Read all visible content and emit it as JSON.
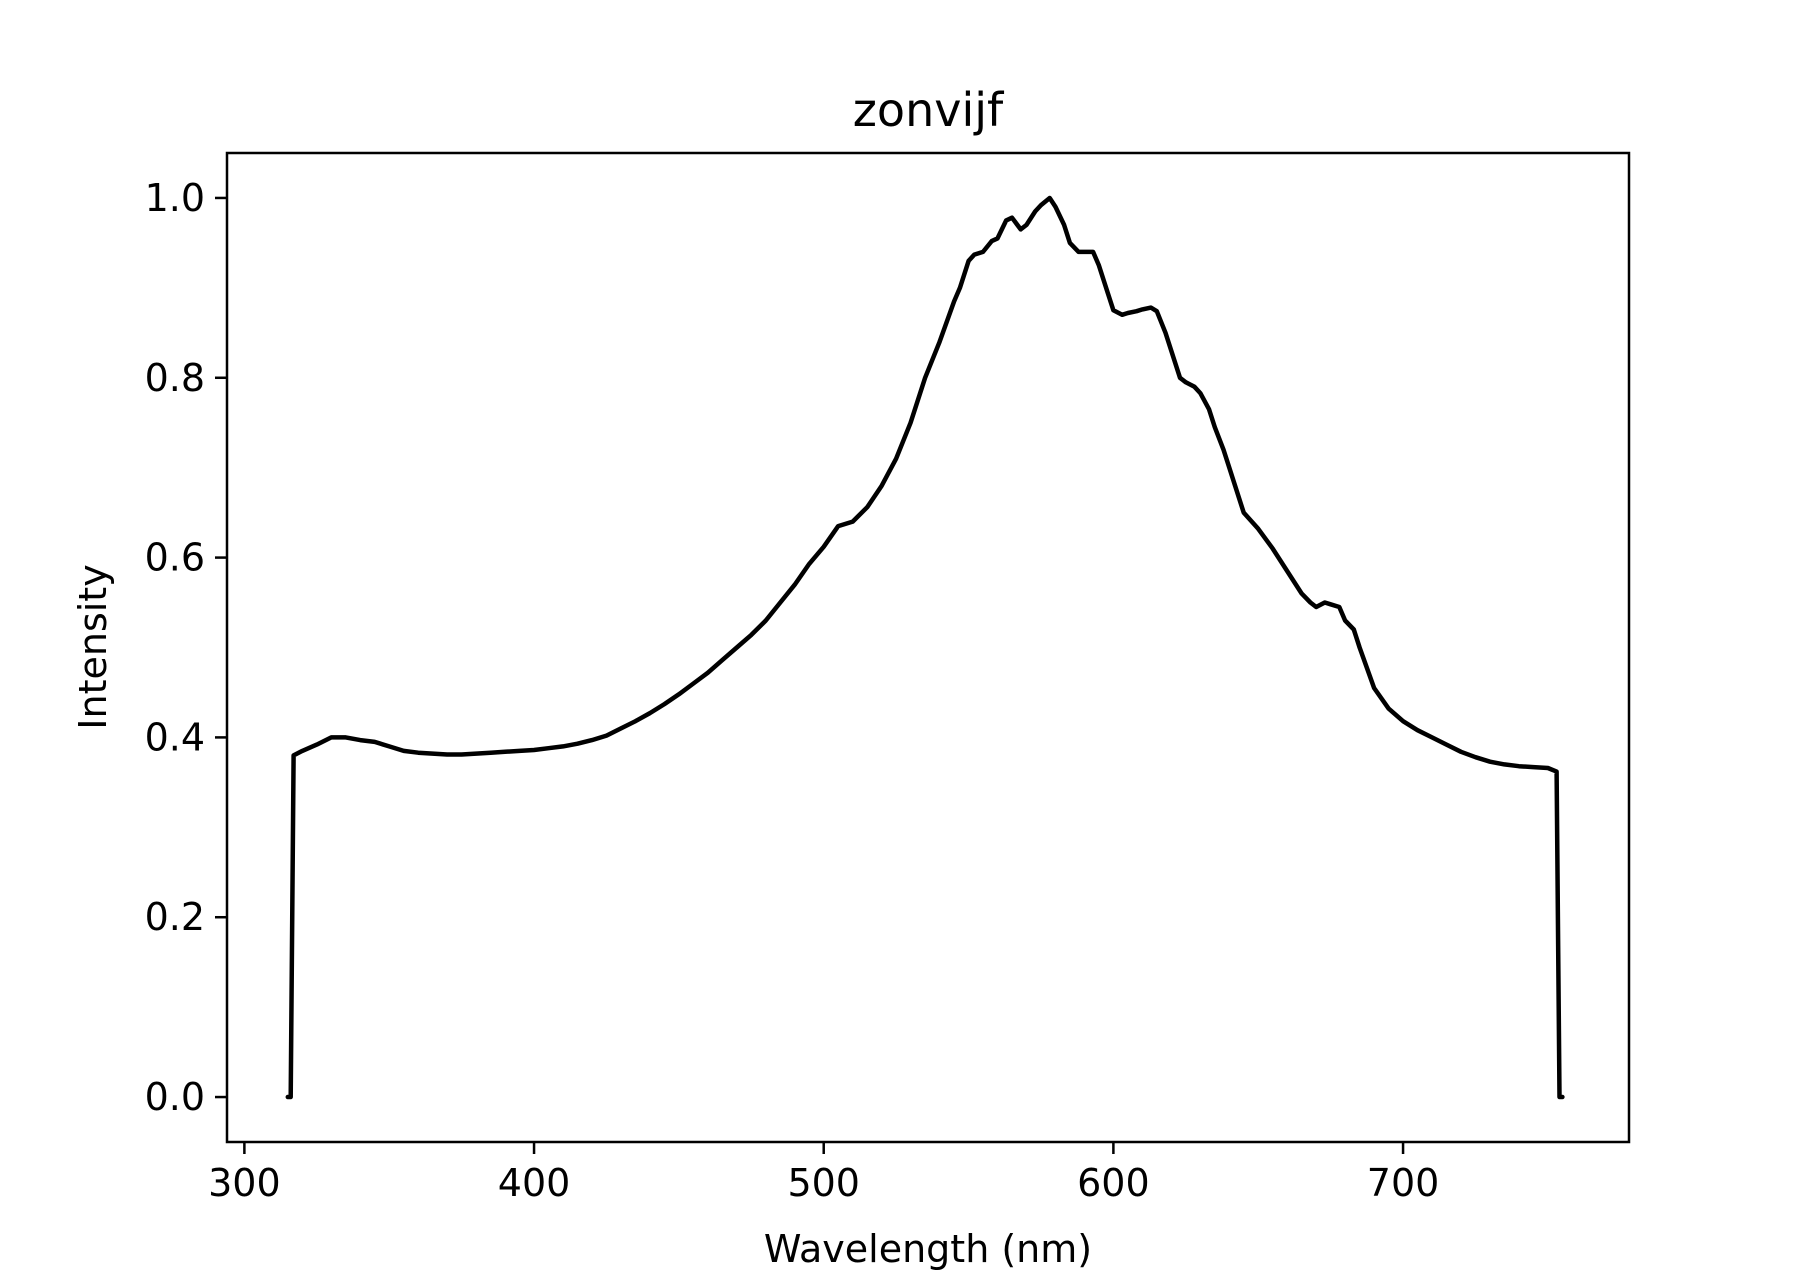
{
  "chart_data": {
    "type": "line",
    "title": "zonvijf",
    "xlabel": "Wavelength (nm)",
    "ylabel": "Intensity",
    "xlim": [
      294,
      778
    ],
    "ylim": [
      -0.05,
      1.05
    ],
    "xticks": [
      300,
      400,
      500,
      600,
      700
    ],
    "yticks": [
      0.0,
      0.2,
      0.4,
      0.6,
      0.8,
      1.0
    ],
    "xtick_labels": [
      "300",
      "400",
      "500",
      "600",
      "700"
    ],
    "ytick_labels": [
      "0.0",
      "0.2",
      "0.4",
      "0.6",
      "0.8",
      "1.0"
    ],
    "grid": false,
    "line_color": "#000000",
    "series": [
      {
        "x": [
          315,
          316,
          317,
          320,
          325,
          330,
          335,
          340,
          345,
          350,
          355,
          360,
          365,
          370,
          375,
          380,
          385,
          390,
          395,
          400,
          405,
          410,
          415,
          420,
          425,
          430,
          435,
          440,
          445,
          450,
          455,
          460,
          465,
          470,
          475,
          480,
          485,
          490,
          495,
          500,
          505,
          510,
          515,
          520,
          525,
          530,
          535,
          540,
          545,
          547,
          550,
          552,
          555,
          558,
          560,
          563,
          565,
          568,
          570,
          573,
          575,
          578,
          580,
          583,
          585,
          588,
          590,
          593,
          595,
          598,
          600,
          603,
          605,
          608,
          610,
          613,
          615,
          618,
          620,
          623,
          625,
          628,
          630,
          633,
          635,
          638,
          640,
          645,
          650,
          655,
          660,
          665,
          668,
          670,
          673,
          675,
          678,
          680,
          683,
          685,
          690,
          695,
          700,
          705,
          710,
          715,
          720,
          725,
          730,
          735,
          740,
          745,
          750,
          753,
          754,
          755
        ],
        "y": [
          0.0,
          0.0,
          0.38,
          0.385,
          0.392,
          0.4,
          0.4,
          0.397,
          0.395,
          0.39,
          0.385,
          0.383,
          0.382,
          0.381,
          0.381,
          0.382,
          0.383,
          0.384,
          0.385,
          0.386,
          0.388,
          0.39,
          0.393,
          0.397,
          0.402,
          0.41,
          0.418,
          0.427,
          0.437,
          0.448,
          0.46,
          0.472,
          0.486,
          0.5,
          0.514,
          0.53,
          0.55,
          0.57,
          0.593,
          0.612,
          0.635,
          0.64,
          0.656,
          0.68,
          0.71,
          0.75,
          0.8,
          0.84,
          0.885,
          0.9,
          0.93,
          0.937,
          0.94,
          0.952,
          0.955,
          0.975,
          0.978,
          0.965,
          0.97,
          0.985,
          0.992,
          1.0,
          0.99,
          0.97,
          0.95,
          0.94,
          0.94,
          0.94,
          0.925,
          0.895,
          0.875,
          0.87,
          0.872,
          0.874,
          0.876,
          0.878,
          0.874,
          0.85,
          0.83,
          0.8,
          0.795,
          0.79,
          0.783,
          0.765,
          0.745,
          0.72,
          0.7,
          0.65,
          0.632,
          0.61,
          0.585,
          0.56,
          0.55,
          0.545,
          0.55,
          0.548,
          0.545,
          0.53,
          0.52,
          0.5,
          0.455,
          0.432,
          0.418,
          0.408,
          0.4,
          0.392,
          0.384,
          0.378,
          0.373,
          0.37,
          0.368,
          0.367,
          0.366,
          0.362,
          0.0,
          0.0
        ]
      }
    ]
  }
}
